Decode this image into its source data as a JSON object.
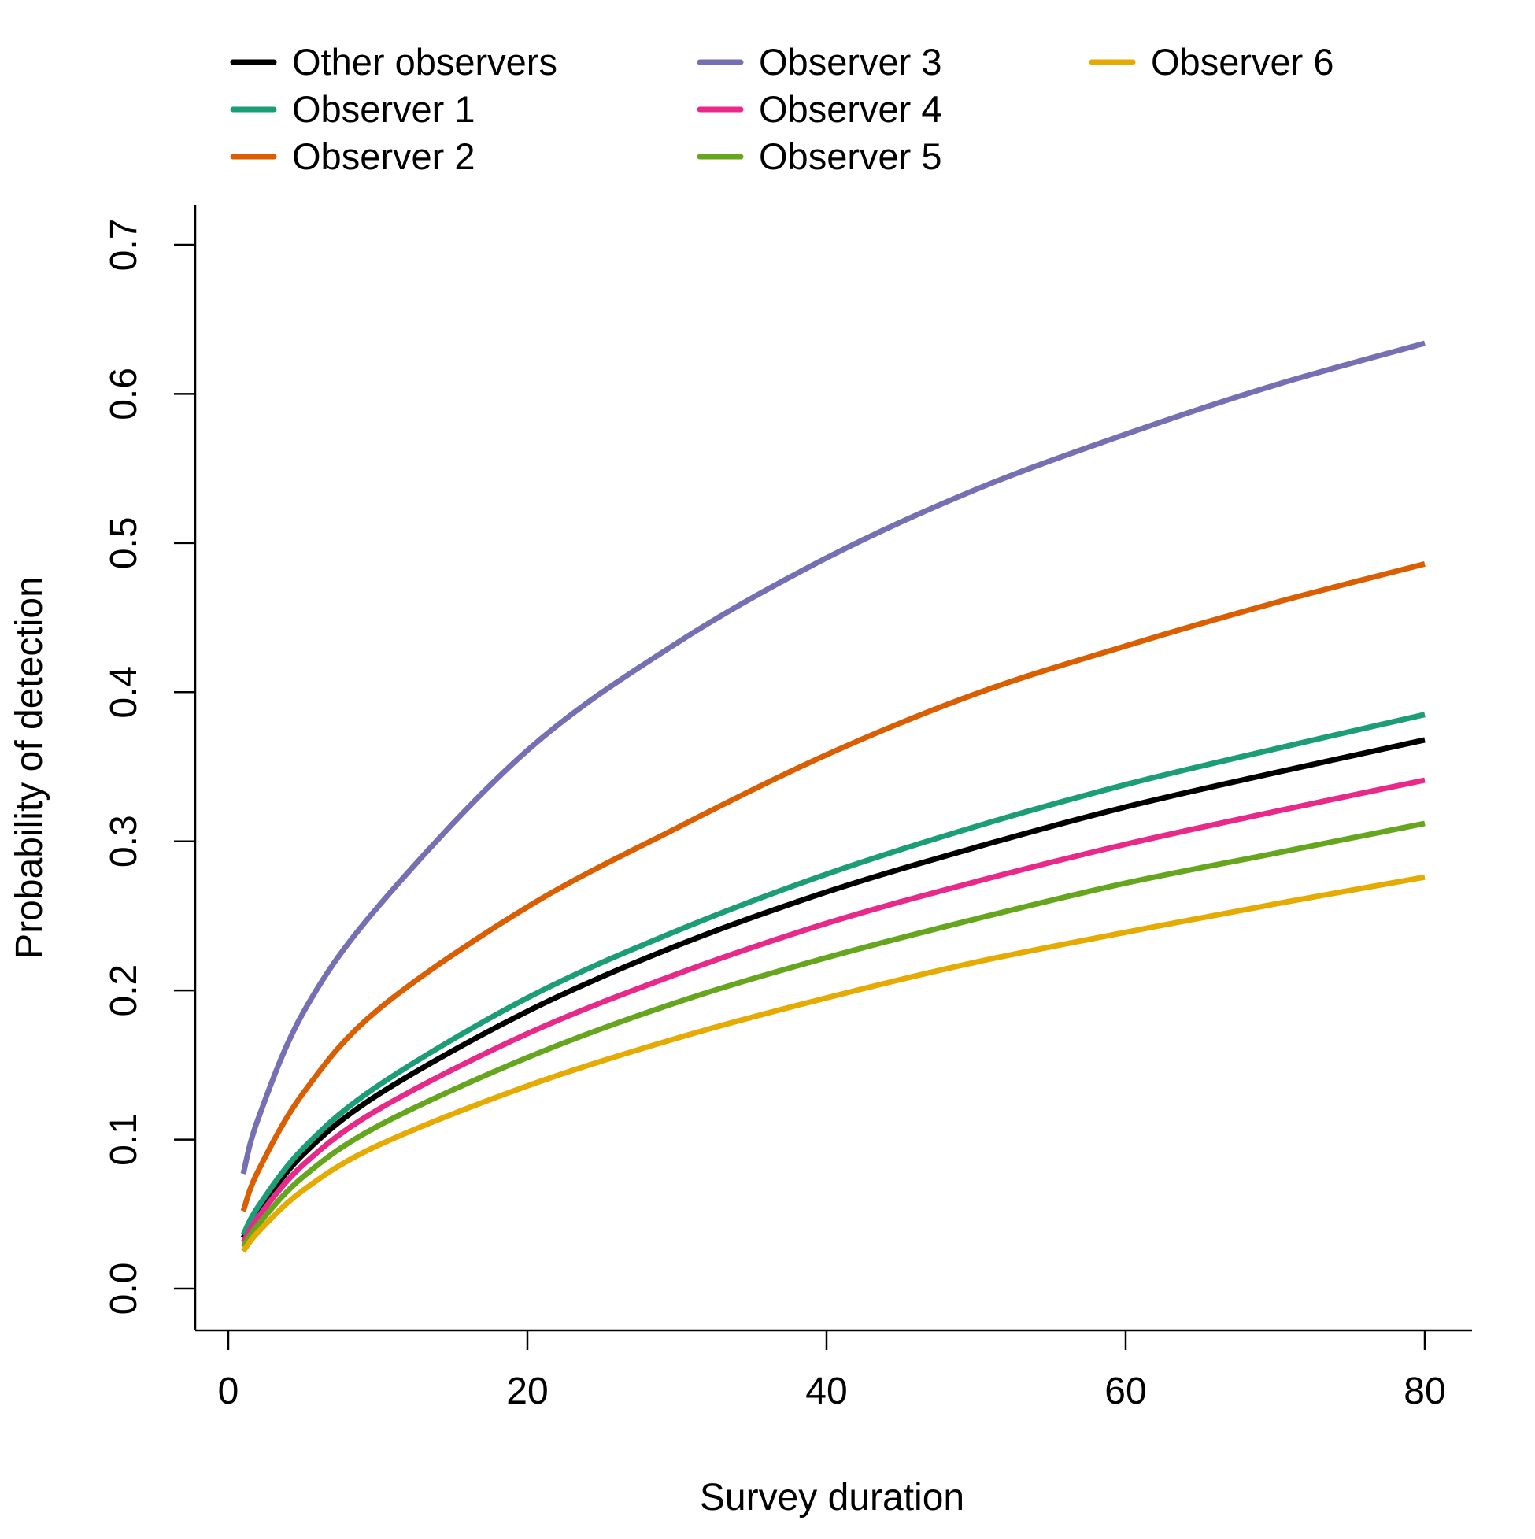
{
  "chart_data": {
    "type": "line",
    "xlabel": "Survey duration",
    "ylabel": "Probability of detection",
    "xlim": [
      0,
      80
    ],
    "ylim": [
      0,
      0.7
    ],
    "xticks": [
      0,
      20,
      40,
      60,
      80
    ],
    "yticks": [
      0.0,
      0.1,
      0.2,
      0.3,
      0.4,
      0.5,
      0.6,
      0.7
    ],
    "xtick_labels": [
      "0",
      "20",
      "40",
      "60",
      "80"
    ],
    "ytick_labels": [
      "0.0",
      "0.1",
      "0.2",
      "0.3",
      "0.4",
      "0.5",
      "0.6",
      "0.7"
    ],
    "grid": false,
    "legend_position": "top",
    "x": [
      1,
      2,
      5,
      10,
      20,
      30,
      40,
      50,
      60,
      70,
      80
    ],
    "series": [
      {
        "name": "Other observers",
        "color": "#000000",
        "values": [
          0.034,
          0.052,
          0.09,
          0.13,
          0.186,
          0.23,
          0.266,
          0.296,
          0.323,
          0.346,
          0.368
        ]
      },
      {
        "name": "Observer 1",
        "color": "#1b9e77",
        "values": [
          0.036,
          0.055,
          0.094,
          0.136,
          0.195,
          0.24,
          0.278,
          0.31,
          0.338,
          0.362,
          0.385
        ]
      },
      {
        "name": "Observer 2",
        "color": "#d95f02",
        "values": [
          0.052,
          0.079,
          0.131,
          0.187,
          0.256,
          0.309,
          0.358,
          0.399,
          0.431,
          0.46,
          0.486
        ]
      },
      {
        "name": "Observer 3",
        "color": "#7570b3",
        "values": [
          0.077,
          0.114,
          0.185,
          0.256,
          0.361,
          0.433,
          0.49,
          0.536,
          0.573,
          0.606,
          0.634
        ]
      },
      {
        "name": "Observer 4",
        "color": "#e7298a",
        "values": [
          0.031,
          0.048,
          0.083,
          0.12,
          0.171,
          0.211,
          0.245,
          0.273,
          0.298,
          0.32,
          0.341
        ]
      },
      {
        "name": "Observer 5",
        "color": "#66a61e",
        "values": [
          0.028,
          0.043,
          0.075,
          0.109,
          0.155,
          0.192,
          0.222,
          0.248,
          0.272,
          0.292,
          0.312
        ]
      },
      {
        "name": "Observer 6",
        "color": "#e6ab02",
        "values": [
          0.025,
          0.038,
          0.066,
          0.096,
          0.136,
          0.168,
          0.195,
          0.219,
          0.239,
          0.258,
          0.276
        ]
      }
    ]
  }
}
